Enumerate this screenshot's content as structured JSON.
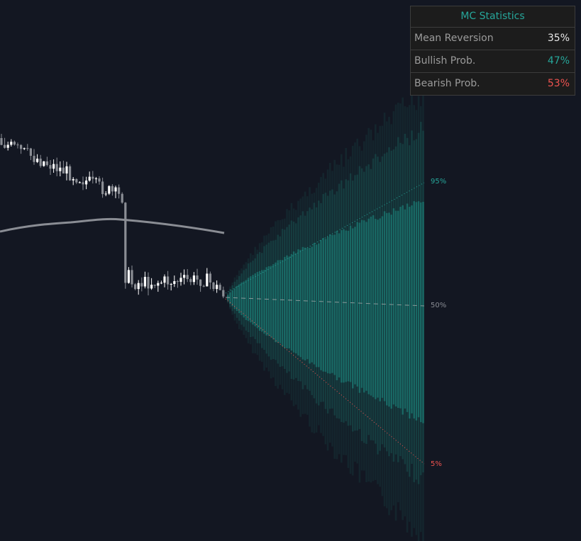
{
  "stats_table": {
    "title": "MC Statistics",
    "rows": [
      [
        "Mean Reversion",
        "35%"
      ],
      [
        "Bullish Prob.",
        "47%"
      ],
      [
        "Bearish Prob.",
        "53%"
      ]
    ]
  },
  "cone_labels": [
    "95%",
    "50%",
    "5%"
  ]
}
